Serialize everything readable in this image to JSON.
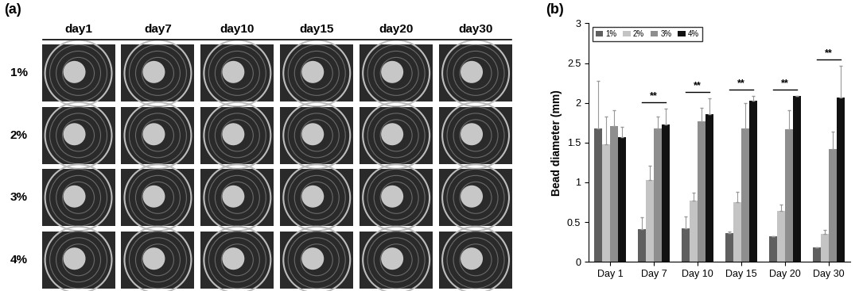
{
  "panel_a": {
    "label": "(a)",
    "columns": [
      "day1",
      "day7",
      "day10",
      "day15",
      "day20",
      "day30"
    ],
    "rows": [
      "1%",
      "2%",
      "3%",
      "4%"
    ]
  },
  "chart_data": {
    "type": "bar",
    "label": "(b)",
    "ylabel": "Bead diameter (mm)",
    "categories": [
      "Day 1",
      "Day 7",
      "Day 10",
      "Day 15",
      "Day 20",
      "Day 30"
    ],
    "series": [
      {
        "name": "1%",
        "color": "#5f5f5f",
        "values": [
          1.68,
          0.41,
          0.42,
          0.36,
          0.32,
          0.18
        ],
        "errors": [
          0.6,
          0.15,
          0.15,
          0.02,
          0.0,
          0.0
        ]
      },
      {
        "name": "2%",
        "color": "#c4c4c4",
        "values": [
          1.48,
          1.03,
          0.77,
          0.75,
          0.64,
          0.35
        ],
        "errors": [
          0.35,
          0.18,
          0.1,
          0.13,
          0.08,
          0.05
        ]
      },
      {
        "name": "3%",
        "color": "#8e8e8e",
        "values": [
          1.71,
          1.68,
          1.77,
          1.68,
          1.67,
          1.42
        ],
        "errors": [
          0.2,
          0.15,
          0.17,
          0.32,
          0.24,
          0.22
        ]
      },
      {
        "name": "4%",
        "color": "#111111",
        "values": [
          1.57,
          1.73,
          1.86,
          2.03,
          2.09,
          2.07
        ],
        "errors": [
          0.13,
          0.2,
          0.2,
          0.06,
          0.0,
          0.4
        ]
      }
    ],
    "significance": [
      {
        "category": "Day 7",
        "text": "**"
      },
      {
        "category": "Day 10",
        "text": "**"
      },
      {
        "category": "Day 15",
        "text": "**"
      },
      {
        "category": "Day 20",
        "text": "**"
      },
      {
        "category": "Day 30",
        "text": "**"
      }
    ],
    "ylim": [
      0,
      3
    ],
    "yticks": [
      0,
      0.5,
      1,
      1.5,
      2,
      2.5,
      3
    ],
    "legend": "upper left",
    "grid": false
  }
}
